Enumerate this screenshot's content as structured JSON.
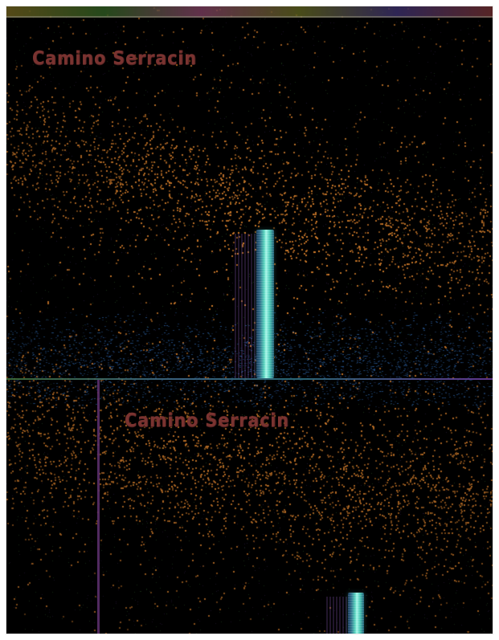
{
  "game": {
    "scene_top": {
      "location_title": "Camino Serracin"
    },
    "scene_bottom": {
      "location_title": "Camino Serracin"
    }
  },
  "colors": {
    "background": "#000000",
    "dust_orange": "#d27c2a",
    "floor_blue": "#2c63a8",
    "title_red": "#7a3330",
    "pillar_cyan": "#58d6bf"
  },
  "icons": {
    "pillar_top": "light-pillar",
    "pillar_bottom": "light-pillar"
  }
}
